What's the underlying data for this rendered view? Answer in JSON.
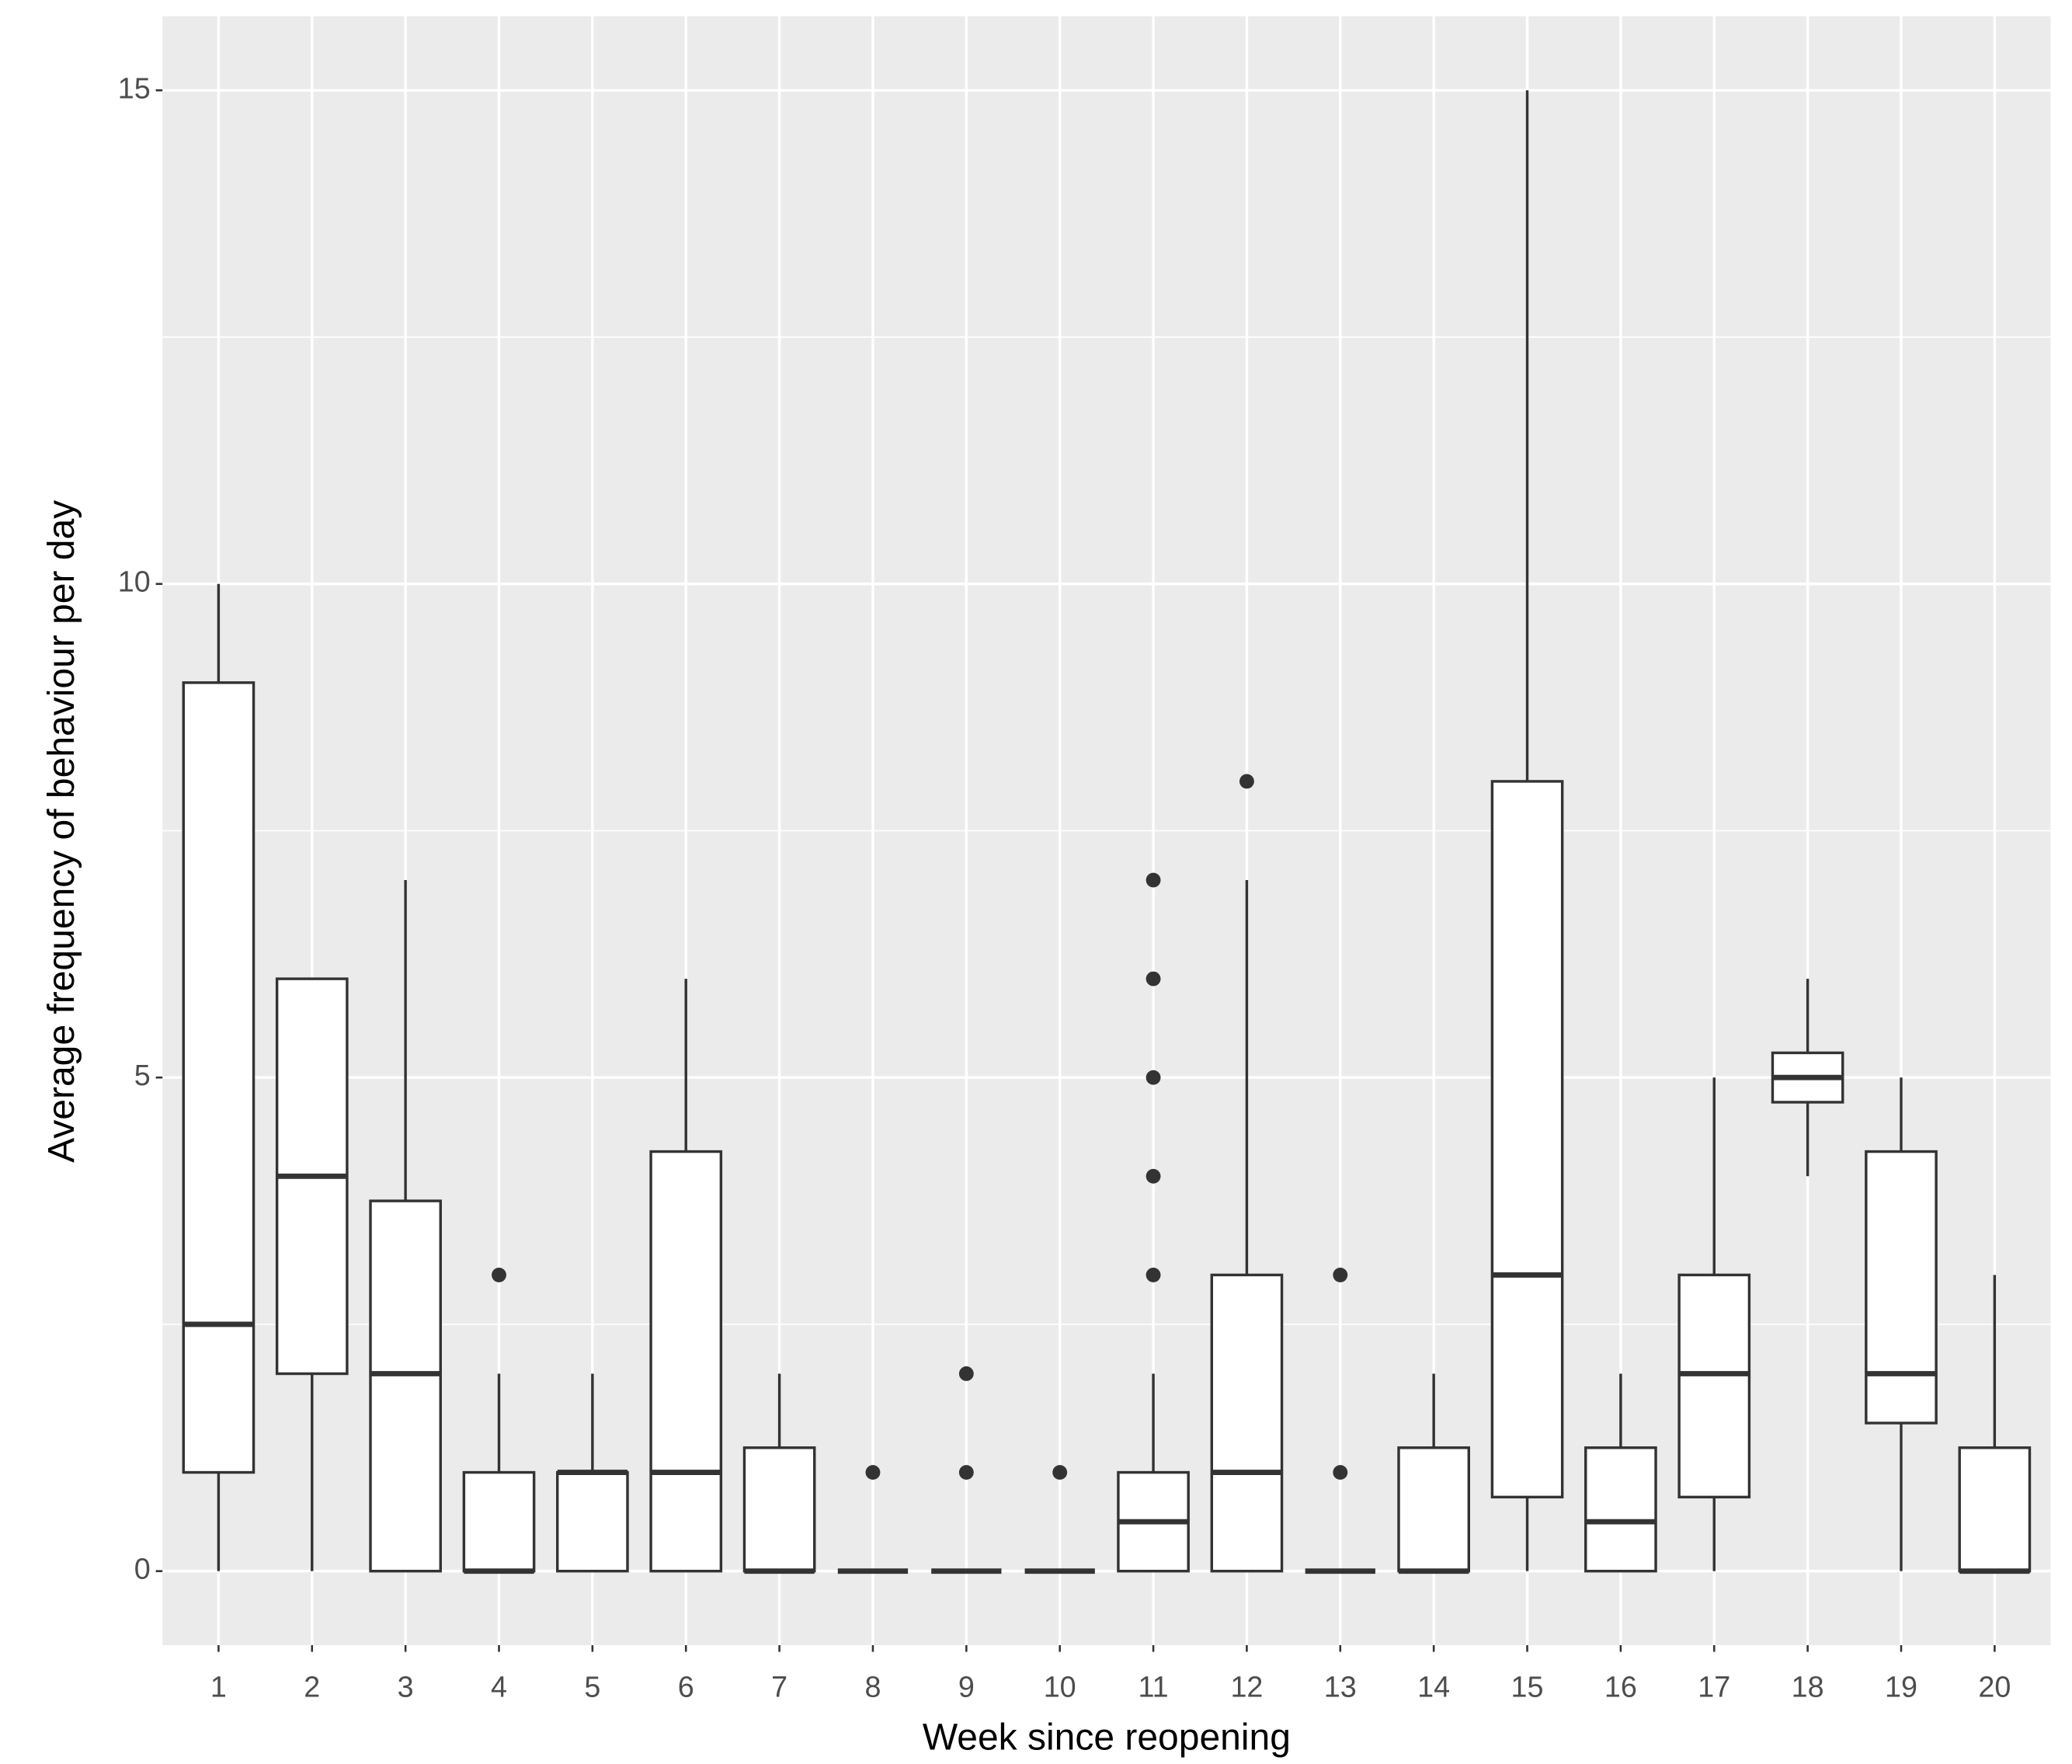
{
  "chart_data": {
    "type": "boxplot",
    "x_label": "Week since reopening",
    "y_label": "Average frequency of behaviour per day",
    "categories": [
      "1",
      "2",
      "3",
      "4",
      "5",
      "6",
      "7",
      "8",
      "9",
      "10",
      "11",
      "12",
      "13",
      "14",
      "15",
      "16",
      "17",
      "18",
      "19",
      "20"
    ],
    "boxes": [
      {
        "whisker_low": 0,
        "q1": 1,
        "median": 2.5,
        "q3": 9,
        "whisker_high": 10,
        "outliers": []
      },
      {
        "whisker_low": 0,
        "q1": 2,
        "median": 4,
        "q3": 6,
        "whisker_high": 6,
        "outliers": []
      },
      {
        "whisker_low": 0,
        "q1": 0,
        "median": 2,
        "q3": 3.75,
        "whisker_high": 7,
        "outliers": []
      },
      {
        "whisker_low": 0,
        "q1": 0,
        "median": 0,
        "q3": 1,
        "whisker_high": 2,
        "outliers": [
          3
        ]
      },
      {
        "whisker_low": 0,
        "q1": 0,
        "median": 1,
        "q3": 1,
        "whisker_high": 2,
        "outliers": []
      },
      {
        "whisker_low": 0,
        "q1": 0,
        "median": 1,
        "q3": 4.25,
        "whisker_high": 6,
        "outliers": []
      },
      {
        "whisker_low": 0,
        "q1": 0,
        "median": 0,
        "q3": 1.25,
        "whisker_high": 2,
        "outliers": []
      },
      {
        "whisker_low": 0,
        "q1": 0,
        "median": 0,
        "q3": 0,
        "whisker_high": 0,
        "outliers": [
          1
        ]
      },
      {
        "whisker_low": 0,
        "q1": 0,
        "median": 0,
        "q3": 0,
        "whisker_high": 0,
        "outliers": [
          1,
          2
        ]
      },
      {
        "whisker_low": 0,
        "q1": 0,
        "median": 0,
        "q3": 0,
        "whisker_high": 0,
        "outliers": [
          1
        ]
      },
      {
        "whisker_low": 0,
        "q1": 0,
        "median": 0.5,
        "q3": 1,
        "whisker_high": 2,
        "outliers": [
          3,
          4,
          5,
          6,
          7
        ]
      },
      {
        "whisker_low": 0,
        "q1": 0,
        "median": 1,
        "q3": 3,
        "whisker_high": 7,
        "outliers": [
          8
        ]
      },
      {
        "whisker_low": 0,
        "q1": 0,
        "median": 0,
        "q3": 0,
        "whisker_high": 0,
        "outliers": [
          1,
          3
        ]
      },
      {
        "whisker_low": 0,
        "q1": 0,
        "median": 0,
        "q3": 1.25,
        "whisker_high": 2,
        "outliers": []
      },
      {
        "whisker_low": 0,
        "q1": 0.75,
        "median": 3,
        "q3": 8,
        "whisker_high": 15,
        "outliers": []
      },
      {
        "whisker_low": 0,
        "q1": 0,
        "median": 0.5,
        "q3": 1.25,
        "whisker_high": 2,
        "outliers": []
      },
      {
        "whisker_low": 0,
        "q1": 0.75,
        "median": 2,
        "q3": 3,
        "whisker_high": 5,
        "outliers": []
      },
      {
        "whisker_low": 4,
        "q1": 4.75,
        "median": 5,
        "q3": 5.25,
        "whisker_high": 6,
        "outliers": []
      },
      {
        "whisker_low": 0,
        "q1": 1.5,
        "median": 2,
        "q3": 4.25,
        "whisker_high": 5,
        "outliers": []
      },
      {
        "whisker_low": 0,
        "q1": 0,
        "median": 0,
        "q3": 1.25,
        "whisker_high": 3,
        "outliers": []
      }
    ],
    "color": "#333333",
    "box_fill": "#ffffff",
    "panel_color": "#ebebeb",
    "ylim": [
      -0.75,
      15.75
    ],
    "yticks": [
      0,
      5,
      10,
      15
    ],
    "y_minor_grid": [
      2.5,
      7.5,
      12.5
    ],
    "grid": true
  }
}
